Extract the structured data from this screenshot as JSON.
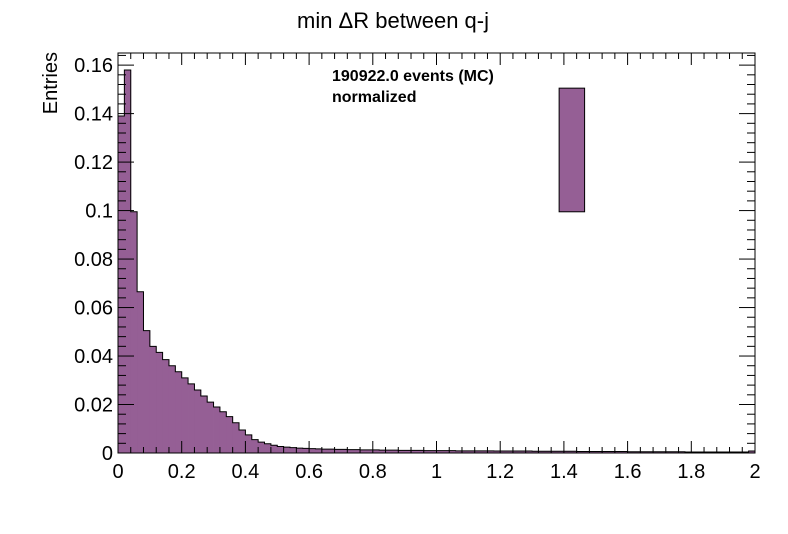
{
  "chart_data": {
    "type": "bar",
    "title": "min ΔR between q-j",
    "xlabel": "",
    "ylabel": "Entries",
    "xlim": [
      0,
      2
    ],
    "ylim": [
      0,
      0.165
    ],
    "bin_width": 0.02,
    "x_ticks": [
      0,
      0.2,
      0.4,
      0.6,
      0.8,
      1,
      1.2,
      1.4,
      1.6,
      1.8,
      2
    ],
    "x_tick_labels": [
      "0",
      "0.2",
      "0.4",
      "0.6",
      "0.8",
      "1",
      "1.2",
      "1.4",
      "1.6",
      "1.8",
      "2"
    ],
    "y_ticks": [
      0,
      0.02,
      0.04,
      0.06,
      0.08,
      0.1,
      0.12,
      0.14,
      0.16
    ],
    "y_tick_labels": [
      "0",
      "0.02",
      "0.04",
      "0.06",
      "0.08",
      "0.1",
      "0.12",
      "0.14",
      "0.16"
    ],
    "fill_color": "#955f95",
    "line_color": "#000000",
    "annotations": [
      "190922.0 events (MC)",
      "normalized"
    ],
    "legend_placement": "top-right",
    "legend_box_y_range": [
      0.0995,
      0.1505
    ],
    "legend_box_x_range": [
      1.385,
      1.465
    ],
    "values": [
      0.139,
      0.158,
      0.0995,
      0.0665,
      0.0505,
      0.044,
      0.0415,
      0.0385,
      0.036,
      0.0335,
      0.031,
      0.0285,
      0.026,
      0.0235,
      0.021,
      0.019,
      0.017,
      0.015,
      0.0125,
      0.0095,
      0.0075,
      0.0055,
      0.0045,
      0.0038,
      0.0032,
      0.0027,
      0.0024,
      0.0022,
      0.002,
      0.0019,
      0.0018,
      0.0017,
      0.0016,
      0.0016,
      0.0015,
      0.0015,
      0.0014,
      0.0014,
      0.0013,
      0.0013,
      0.0013,
      0.0012,
      0.0012,
      0.0012,
      0.0011,
      0.0011,
      0.0011,
      0.0011,
      0.001,
      0.001,
      0.001,
      0.001,
      0.001,
      0.0009,
      0.0009,
      0.0009,
      0.0009,
      0.0009,
      0.0009,
      0.0008,
      0.0008,
      0.0008,
      0.0008,
      0.0008,
      0.0008,
      0.0007,
      0.0007,
      0.0007,
      0.0007,
      0.0007,
      0.0007,
      0.0007,
      0.0006,
      0.0006,
      0.0006,
      0.0006,
      0.0006,
      0.0006,
      0.0006,
      0.0006,
      0.0005,
      0.0005,
      0.0005,
      0.0005,
      0.0005,
      0.0005,
      0.0005,
      0.0005,
      0.0005,
      0.0004,
      0.0004,
      0.0004,
      0.0004,
      0.0004,
      0.0004,
      0.0004,
      0.0004,
      0.0004,
      0.0004,
      0.0008
    ]
  }
}
